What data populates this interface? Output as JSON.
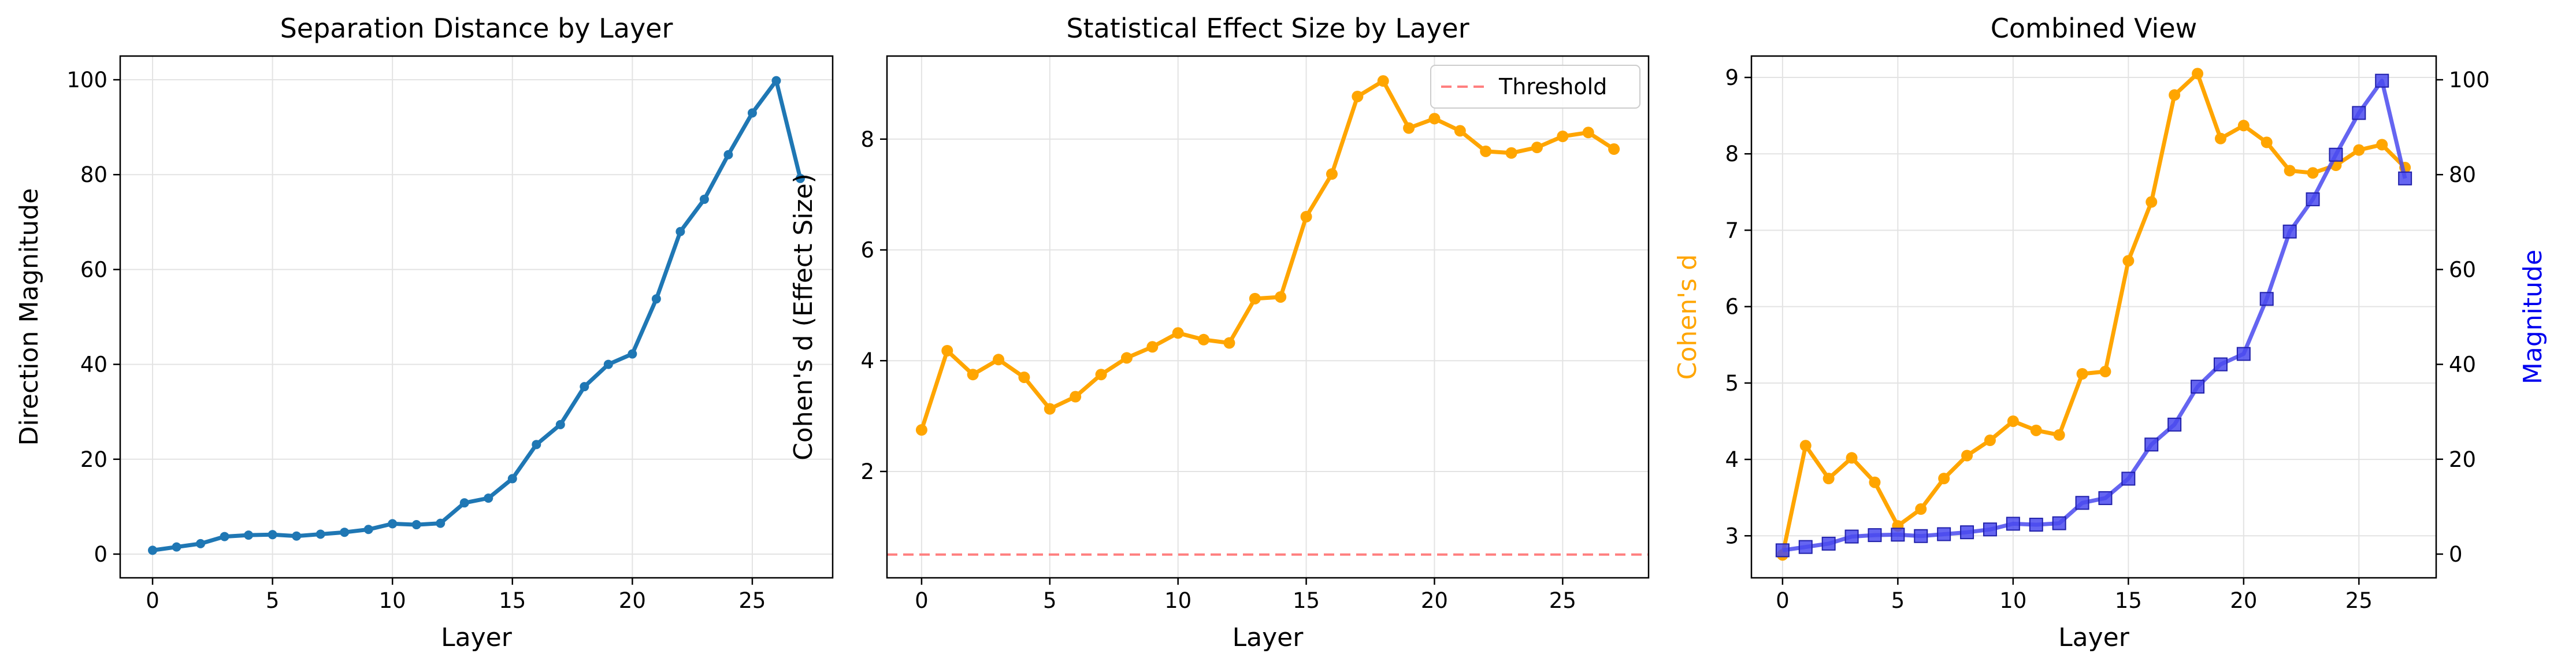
{
  "chart_data": [
    {
      "type": "line",
      "title": "Separation Distance by Layer",
      "xlabel": "Layer",
      "ylabel": "Direction Magnitude",
      "xlim": [
        -1.35,
        28.35
      ],
      "ylim": [
        -5,
        105
      ],
      "xticks": [
        "0",
        "5",
        "10",
        "15",
        "20",
        "25"
      ],
      "yticks": [
        "0",
        "20",
        "40",
        "60",
        "80",
        "100"
      ],
      "grid": true,
      "x": [
        0,
        1,
        2,
        3,
        4,
        5,
        6,
        7,
        8,
        9,
        10,
        11,
        12,
        13,
        14,
        15,
        16,
        17,
        18,
        19,
        20,
        21,
        22,
        23,
        24,
        25,
        26,
        27
      ],
      "series": [
        {
          "color": "#1f77b4",
          "marker": "circle",
          "values": [
            0.8,
            1.5,
            2.2,
            3.7,
            4.0,
            4.1,
            3.8,
            4.2,
            4.6,
            5.2,
            6.4,
            6.2,
            6.5,
            10.8,
            11.8,
            15.9,
            23.1,
            27.3,
            35.3,
            40.0,
            42.2,
            53.8,
            68.0,
            74.8,
            84.2,
            93.0,
            99.8,
            79.2
          ]
        }
      ]
    },
    {
      "type": "line",
      "title": "Statistical Effect Size by Layer",
      "xlabel": "Layer",
      "ylabel": "Cohen's d (Effect Size)",
      "xlim": [
        -1.35,
        28.35
      ],
      "ylim": [
        0.08,
        9.5
      ],
      "xticks": [
        "0",
        "5",
        "10",
        "15",
        "20",
        "25"
      ],
      "yticks": [
        "2",
        "4",
        "6",
        "8"
      ],
      "grid": true,
      "legend": "top-right",
      "x": [
        0,
        1,
        2,
        3,
        4,
        5,
        6,
        7,
        8,
        9,
        10,
        11,
        12,
        13,
        14,
        15,
        16,
        17,
        18,
        19,
        20,
        21,
        22,
        23,
        24,
        25,
        26,
        27
      ],
      "series": [
        {
          "color": "#ffa500",
          "marker": "circle",
          "values": [
            2.75,
            4.18,
            3.75,
            4.02,
            3.7,
            3.13,
            3.35,
            3.75,
            4.05,
            4.25,
            4.5,
            4.38,
            4.32,
            5.12,
            5.15,
            6.6,
            7.37,
            8.77,
            9.05,
            8.2,
            8.37,
            8.15,
            7.78,
            7.75,
            7.85,
            8.05,
            8.12,
            7.82
          ]
        }
      ],
      "threshold": {
        "name": "Threshold",
        "value": 0.5,
        "color": "#ff7f7f"
      }
    },
    {
      "type": "line",
      "title": "Combined View",
      "xlabel": "Layer",
      "ylabel": "Cohen's d",
      "ylabel_right": "Magnitude",
      "xlim": [
        -1.35,
        28.35
      ],
      "ylim": [
        2.45,
        9.28
      ],
      "ylim_right": [
        -5,
        105
      ],
      "xticks": [
        "0",
        "5",
        "10",
        "15",
        "20",
        "25"
      ],
      "yticks": [
        "3",
        "4",
        "5",
        "6",
        "7",
        "8",
        "9"
      ],
      "yticks_right": [
        "0",
        "20",
        "40",
        "60",
        "80",
        "100"
      ],
      "grid": true,
      "x": [
        0,
        1,
        2,
        3,
        4,
        5,
        6,
        7,
        8,
        9,
        10,
        11,
        12,
        13,
        14,
        15,
        16,
        17,
        18,
        19,
        20,
        21,
        22,
        23,
        24,
        25,
        26,
        27
      ],
      "series": [
        {
          "axis": "left",
          "color": "#ffa500",
          "marker": "circle",
          "values": [
            2.75,
            4.18,
            3.75,
            4.02,
            3.7,
            3.13,
            3.35,
            3.75,
            4.05,
            4.25,
            4.5,
            4.38,
            4.32,
            5.12,
            5.15,
            6.6,
            7.37,
            8.77,
            9.05,
            8.2,
            8.37,
            8.15,
            7.78,
            7.75,
            7.85,
            8.05,
            8.12,
            7.82
          ]
        },
        {
          "axis": "right",
          "color": "#4a4aee",
          "marker": "square",
          "values": [
            0.8,
            1.5,
            2.2,
            3.7,
            4.0,
            4.1,
            3.8,
            4.2,
            4.6,
            5.2,
            6.4,
            6.2,
            6.5,
            10.8,
            11.8,
            15.9,
            23.1,
            27.3,
            35.3,
            40.0,
            42.2,
            53.8,
            68.0,
            74.8,
            84.2,
            93.0,
            99.8,
            79.2
          ]
        }
      ]
    }
  ]
}
